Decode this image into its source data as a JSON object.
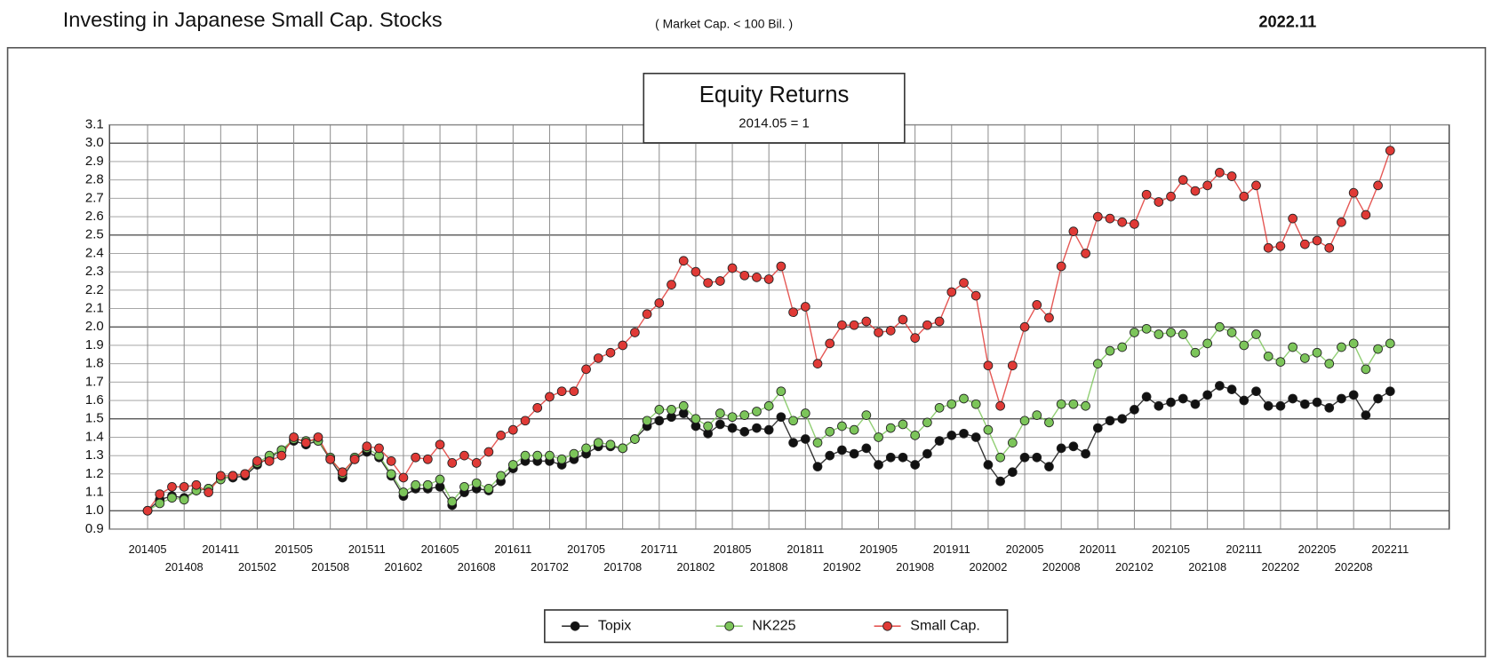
{
  "chart_data": {
    "type": "line",
    "header": "Investing in Japanese  Small Cap.  Stocks",
    "subheader": "( Market Cap. < 100 Bil. )",
    "date": "2022.11",
    "title": "Equity Returns",
    "subtitle": "2014.05 = 1",
    "categories": [
      "201405",
      null,
      null,
      "201408",
      null,
      null,
      "201411",
      null,
      null,
      "201502",
      null,
      null,
      "201505",
      null,
      null,
      "201508",
      null,
      null,
      "201511",
      null,
      null,
      "201602",
      null,
      null,
      "201605",
      null,
      null,
      "201608",
      null,
      null,
      "201611",
      null,
      null,
      "201702",
      null,
      null,
      "201705",
      null,
      null,
      "201708",
      null,
      null,
      "201711",
      null,
      null,
      "201802",
      null,
      null,
      "201805",
      null,
      null,
      "201808",
      null,
      null,
      "201811",
      null,
      null,
      "201902",
      null,
      null,
      "201905",
      null,
      null,
      "201908",
      null,
      null,
      "201911",
      null,
      null,
      "202002",
      null,
      null,
      "202005",
      null,
      null,
      "202008",
      null,
      null,
      "202011",
      null,
      null,
      "202102",
      null,
      null,
      "202105",
      null,
      null,
      "202108",
      null,
      null,
      "202111",
      null,
      null,
      "202202",
      null,
      null,
      "202205",
      null,
      null,
      "202208",
      null,
      null,
      "202211"
    ],
    "series": [
      {
        "name": "Topix",
        "color": "#111111",
        "values": [
          1.0,
          1.06,
          1.08,
          1.07,
          1.11,
          1.12,
          1.18,
          1.18,
          1.19,
          1.25,
          1.29,
          1.33,
          1.38,
          1.36,
          1.38,
          1.28,
          1.18,
          1.28,
          1.32,
          1.29,
          1.19,
          1.08,
          1.12,
          1.12,
          1.13,
          1.03,
          1.1,
          1.12,
          1.11,
          1.16,
          1.23,
          1.27,
          1.27,
          1.27,
          1.25,
          1.28,
          1.31,
          1.35,
          1.35,
          1.34,
          1.39,
          1.46,
          1.49,
          1.51,
          1.53,
          1.46,
          1.42,
          1.47,
          1.45,
          1.43,
          1.45,
          1.44,
          1.51,
          1.37,
          1.39,
          1.24,
          1.3,
          1.33,
          1.31,
          1.34,
          1.25,
          1.29,
          1.29,
          1.25,
          1.31,
          1.38,
          1.41,
          1.42,
          1.4,
          1.25,
          1.16,
          1.21,
          1.29,
          1.29,
          1.24,
          1.34,
          1.35,
          1.31,
          1.45,
          1.49,
          1.5,
          1.55,
          1.62,
          1.57,
          1.59,
          1.61,
          1.58,
          1.63,
          1.68,
          1.66,
          1.6,
          1.65,
          1.57,
          1.57,
          1.61,
          1.58,
          1.59,
          1.56,
          1.61,
          1.63,
          1.52,
          1.61,
          1.65
        ]
      },
      {
        "name": "NK225",
        "color": "#7cc55a",
        "values": [
          1.0,
          1.04,
          1.07,
          1.06,
          1.11,
          1.12,
          1.17,
          1.19,
          1.2,
          1.26,
          1.3,
          1.33,
          1.39,
          1.38,
          1.38,
          1.29,
          1.2,
          1.29,
          1.34,
          1.3,
          1.2,
          1.1,
          1.14,
          1.14,
          1.17,
          1.05,
          1.13,
          1.15,
          1.12,
          1.19,
          1.25,
          1.3,
          1.3,
          1.3,
          1.28,
          1.31,
          1.34,
          1.37,
          1.36,
          1.34,
          1.39,
          1.49,
          1.55,
          1.55,
          1.57,
          1.5,
          1.46,
          1.53,
          1.51,
          1.52,
          1.54,
          1.57,
          1.65,
          1.49,
          1.53,
          1.37,
          1.43,
          1.46,
          1.44,
          1.52,
          1.4,
          1.45,
          1.47,
          1.41,
          1.48,
          1.56,
          1.58,
          1.61,
          1.58,
          1.44,
          1.29,
          1.37,
          1.49,
          1.52,
          1.48,
          1.58,
          1.58,
          1.57,
          1.8,
          1.87,
          1.89,
          1.97,
          1.99,
          1.96,
          1.97,
          1.96,
          1.86,
          1.91,
          2.0,
          1.97,
          1.9,
          1.96,
          1.84,
          1.81,
          1.89,
          1.83,
          1.86,
          1.8,
          1.89,
          1.91,
          1.77,
          1.88,
          1.91
        ]
      },
      {
        "name": "Small Cap.",
        "color": "#e03a36",
        "values": [
          1.0,
          1.09,
          1.13,
          1.13,
          1.14,
          1.1,
          1.19,
          1.19,
          1.2,
          1.27,
          1.27,
          1.3,
          1.4,
          1.37,
          1.4,
          1.28,
          1.21,
          1.28,
          1.35,
          1.34,
          1.27,
          1.18,
          1.29,
          1.28,
          1.36,
          1.26,
          1.3,
          1.26,
          1.32,
          1.41,
          1.44,
          1.49,
          1.56,
          1.62,
          1.65,
          1.65,
          1.77,
          1.83,
          1.86,
          1.9,
          1.97,
          2.07,
          2.13,
          2.23,
          2.36,
          2.3,
          2.24,
          2.25,
          2.32,
          2.28,
          2.27,
          2.26,
          2.33,
          2.08,
          2.11,
          1.8,
          1.91,
          2.01,
          2.01,
          2.03,
          1.97,
          1.98,
          2.04,
          1.94,
          2.01,
          2.03,
          2.19,
          2.24,
          2.17,
          1.79,
          1.57,
          1.79,
          2.0,
          2.12,
          2.05,
          2.33,
          2.52,
          2.4,
          2.6,
          2.59,
          2.57,
          2.56,
          2.72,
          2.68,
          2.71,
          2.8,
          2.74,
          2.77,
          2.84,
          2.82,
          2.71,
          2.77,
          2.43,
          2.44,
          2.59,
          2.45,
          2.47,
          2.43,
          2.57,
          2.73,
          2.61,
          2.77,
          2.96
        ]
      }
    ],
    "ylim": [
      0.9,
      3.1
    ],
    "yticks": [
      0.9,
      {
        "value": 1,
        "label": "1.0"
      },
      1.1,
      1.2,
      1.3,
      1.4,
      1.5,
      1.6,
      1.7,
      1.8,
      1.9,
      {
        "value": 2,
        "label": "2.0"
      },
      2.1,
      2.2,
      2.3,
      2.4,
      2.5,
      2.6,
      2.7,
      2.8,
      2.9,
      {
        "value": 3,
        "label": "3.0"
      },
      3.1
    ],
    "grid": true,
    "legend": "bottom"
  }
}
